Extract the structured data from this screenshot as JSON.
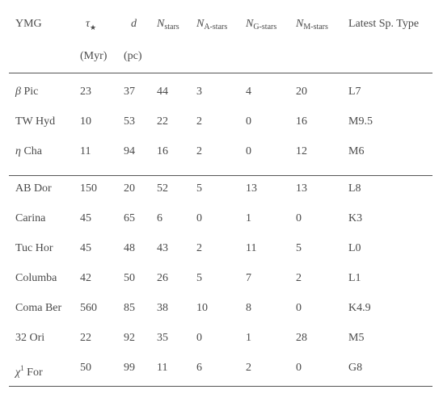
{
  "table": {
    "headers": {
      "ymg": "YMG",
      "tau_symbol": "τ",
      "tau_sub": "★",
      "tau_unit": "(Myr)",
      "d_symbol": "d",
      "d_unit": "(pc)",
      "nstars_symbol": "N",
      "nstars_sub": "stars",
      "na_symbol": "N",
      "na_sub": "A-stars",
      "ng_symbol": "N",
      "ng_sub": "G-stars",
      "nm_symbol": "N",
      "nm_sub": "M-stars",
      "sptype": "Latest Sp. Type"
    },
    "group1": [
      {
        "name_symbol": "β",
        "name_rest": " Pic",
        "tau": "23",
        "d": "37",
        "nstars": "44",
        "na": "3",
        "ng": "4",
        "nm": "20",
        "sptype": "L7"
      },
      {
        "name_plain": "TW Hyd",
        "tau": "10",
        "d": "53",
        "nstars": "22",
        "na": "2",
        "ng": "0",
        "nm": "16",
        "sptype": "M9.5"
      },
      {
        "name_symbol": "η",
        "name_rest": " Cha",
        "tau": "11",
        "d": "94",
        "nstars": "16",
        "na": "2",
        "ng": "0",
        "nm": "12",
        "sptype": "M6"
      }
    ],
    "group2": [
      {
        "name_plain": "AB Dor",
        "tau": "150",
        "d": "20",
        "nstars": "52",
        "na": "5",
        "ng": "13",
        "nm": "13",
        "sptype": "L8"
      },
      {
        "name_plain": "Carina",
        "tau": "45",
        "d": "65",
        "nstars": "6",
        "na": "0",
        "ng": "1",
        "nm": "0",
        "sptype": "K3"
      },
      {
        "name_plain": "Tuc Hor",
        "tau": "45",
        "d": "48",
        "nstars": "43",
        "na": "2",
        "ng": "11",
        "nm": "5",
        "sptype": "L0"
      },
      {
        "name_plain": "Columba",
        "tau": "42",
        "d": "50",
        "nstars": "26",
        "na": "5",
        "ng": "7",
        "nm": "2",
        "sptype": "L1"
      },
      {
        "name_plain": "Coma Ber",
        "tau": "560",
        "d": "85",
        "nstars": "38",
        "na": "10",
        "ng": "8",
        "nm": "0",
        "sptype": "K4.9"
      },
      {
        "name_plain": "32 Ori",
        "tau": "22",
        "d": "92",
        "nstars": "35",
        "na": "0",
        "ng": "1",
        "nm": "28",
        "sptype": "M5"
      },
      {
        "name_symbol": "χ",
        "name_sup": "1",
        "name_rest": " For",
        "tau": "50",
        "d": "99",
        "nstars": "11",
        "na": "6",
        "ng": "2",
        "nm": "0",
        "sptype": "G8"
      }
    ]
  }
}
